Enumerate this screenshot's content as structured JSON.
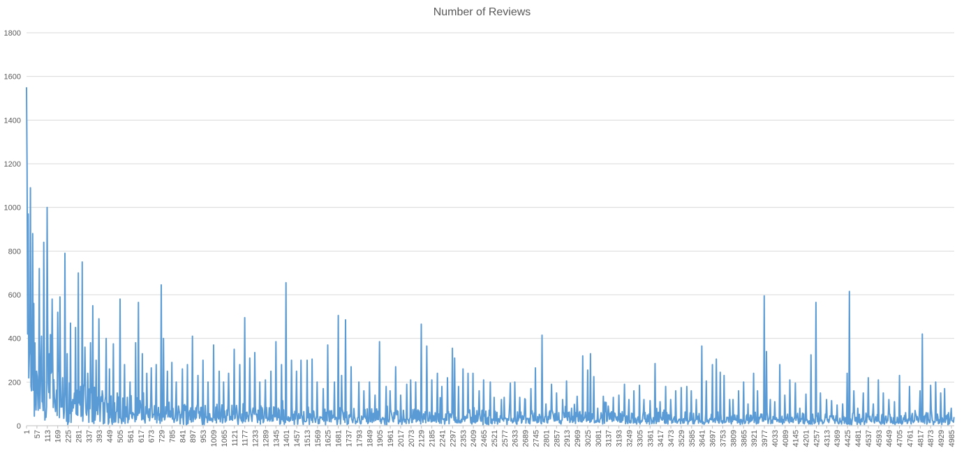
{
  "chart_data": {
    "type": "line",
    "title": "Number of Reviews",
    "xlabel": "",
    "ylabel": "",
    "x_range": [
      1,
      5000
    ],
    "ylim": [
      0,
      1800
    ],
    "yticks": [
      0,
      200,
      400,
      600,
      800,
      1000,
      1200,
      1400,
      1600,
      1800
    ],
    "xtick_labels": [
      "1",
      "57",
      "113",
      "169",
      "225",
      "281",
      "337",
      "393",
      "449",
      "505",
      "561",
      "617",
      "673",
      "729",
      "785",
      "841",
      "897",
      "953",
      "1009",
      "1065",
      "1121",
      "1177",
      "1233",
      "1289",
      "1345",
      "1401",
      "1457",
      "1513",
      "1569",
      "1625",
      "1681",
      "1737",
      "1793",
      "1849",
      "1905",
      "1961",
      "2017",
      "2073",
      "2129",
      "2185",
      "2241",
      "2297",
      "2353",
      "2409",
      "2465",
      "2521",
      "2577",
      "2633",
      "2689",
      "2745",
      "2801",
      "2857",
      "2913",
      "2969",
      "3025",
      "3081",
      "3137",
      "3193",
      "3249",
      "3305",
      "3361",
      "3417",
      "3473",
      "3529",
      "3585",
      "3641",
      "3697",
      "3753",
      "3809",
      "3865",
      "3921",
      "3977",
      "4033",
      "4089",
      "4145",
      "4201",
      "4257",
      "4313",
      "4369",
      "4425",
      "4481",
      "4537",
      "4593",
      "4649",
      "4705",
      "4761",
      "4817",
      "4873",
      "4929",
      "4985"
    ],
    "grid": true,
    "legend": "none",
    "series_color": "#5b9bd5",
    "series": [
      {
        "peaks": [
          [
            1,
            380
          ],
          [
            3,
            1550
          ],
          [
            5,
            1170
          ],
          [
            8,
            420
          ],
          [
            12,
            970
          ],
          [
            17,
            320
          ],
          [
            22,
            1090
          ],
          [
            28,
            160
          ],
          [
            35,
            880
          ],
          [
            42,
            560
          ],
          [
            55,
            250
          ],
          [
            70,
            720
          ],
          [
            82,
            410
          ],
          [
            96,
            840
          ],
          [
            113,
            1000
          ],
          [
            125,
            330
          ],
          [
            140,
            580
          ],
          [
            155,
            100
          ],
          [
            170,
            520
          ],
          [
            182,
            590
          ],
          [
            196,
            220
          ],
          [
            208,
            790
          ],
          [
            222,
            330
          ],
          [
            238,
            470
          ],
          [
            252,
            120
          ],
          [
            266,
            450
          ],
          [
            281,
            700
          ],
          [
            293,
            180
          ],
          [
            303,
            750
          ],
          [
            318,
            360
          ],
          [
            333,
            240
          ],
          [
            347,
            380
          ],
          [
            360,
            550
          ],
          [
            378,
            300
          ],
          [
            393,
            490
          ],
          [
            410,
            160
          ],
          [
            430,
            400
          ],
          [
            449,
            260
          ],
          [
            470,
            375
          ],
          [
            490,
            150
          ],
          [
            505,
            580
          ],
          [
            530,
            280
          ],
          [
            561,
            200
          ],
          [
            590,
            380
          ],
          [
            605,
            565
          ],
          [
            625,
            330
          ],
          [
            650,
            240
          ],
          [
            673,
            265
          ],
          [
            700,
            280
          ],
          [
            729,
            645
          ],
          [
            740,
            400
          ],
          [
            760,
            250
          ],
          [
            785,
            290
          ],
          [
            810,
            200
          ],
          [
            841,
            260
          ],
          [
            870,
            280
          ],
          [
            897,
            410
          ],
          [
            925,
            230
          ],
          [
            953,
            300
          ],
          [
            980,
            200
          ],
          [
            1009,
            370
          ],
          [
            1040,
            250
          ],
          [
            1065,
            200
          ],
          [
            1090,
            240
          ],
          [
            1121,
            350
          ],
          [
            1150,
            280
          ],
          [
            1177,
            495
          ],
          [
            1205,
            310
          ],
          [
            1233,
            335
          ],
          [
            1260,
            200
          ],
          [
            1289,
            210
          ],
          [
            1320,
            250
          ],
          [
            1345,
            385
          ],
          [
            1375,
            280
          ],
          [
            1401,
            655
          ],
          [
            1430,
            300
          ],
          [
            1457,
            250
          ],
          [
            1480,
            300
          ],
          [
            1513,
            300
          ],
          [
            1540,
            305
          ],
          [
            1569,
            200
          ],
          [
            1600,
            170
          ],
          [
            1625,
            370
          ],
          [
            1660,
            200
          ],
          [
            1681,
            505
          ],
          [
            1700,
            230
          ],
          [
            1720,
            485
          ],
          [
            1750,
            270
          ],
          [
            1793,
            200
          ],
          [
            1820,
            160
          ],
          [
            1849,
            200
          ],
          [
            1880,
            140
          ],
          [
            1905,
            385
          ],
          [
            1940,
            180
          ],
          [
            1961,
            160
          ],
          [
            1990,
            270
          ],
          [
            2017,
            140
          ],
          [
            2050,
            190
          ],
          [
            2073,
            210
          ],
          [
            2100,
            200
          ],
          [
            2129,
            465
          ],
          [
            2160,
            365
          ],
          [
            2185,
            210
          ],
          [
            2215,
            240
          ],
          [
            2241,
            180
          ],
          [
            2270,
            220
          ],
          [
            2297,
            355
          ],
          [
            2310,
            310
          ],
          [
            2330,
            180
          ],
          [
            2353,
            260
          ],
          [
            2380,
            240
          ],
          [
            2409,
            240
          ],
          [
            2440,
            160
          ],
          [
            2465,
            210
          ],
          [
            2500,
            200
          ],
          [
            2521,
            130
          ],
          [
            2560,
            120
          ],
          [
            2577,
            130
          ],
          [
            2610,
            195
          ],
          [
            2633,
            200
          ],
          [
            2660,
            130
          ],
          [
            2689,
            120
          ],
          [
            2720,
            170
          ],
          [
            2745,
            265
          ],
          [
            2780,
            415
          ],
          [
            2801,
            100
          ],
          [
            2830,
            190
          ],
          [
            2857,
            150
          ],
          [
            2890,
            120
          ],
          [
            2913,
            205
          ],
          [
            2940,
            80
          ],
          [
            2969,
            135
          ],
          [
            3000,
            320
          ],
          [
            3025,
            255
          ],
          [
            3040,
            330
          ],
          [
            3060,
            225
          ],
          [
            3081,
            80
          ],
          [
            3110,
            135
          ],
          [
            3137,
            90
          ],
          [
            3165,
            130
          ],
          [
            3193,
            140
          ],
          [
            3225,
            190
          ],
          [
            3249,
            120
          ],
          [
            3275,
            160
          ],
          [
            3305,
            185
          ],
          [
            3330,
            120
          ],
          [
            3361,
            115
          ],
          [
            3390,
            285
          ],
          [
            3417,
            110
          ],
          [
            3445,
            180
          ],
          [
            3473,
            120
          ],
          [
            3500,
            160
          ],
          [
            3529,
            175
          ],
          [
            3560,
            180
          ],
          [
            3585,
            160
          ],
          [
            3610,
            120
          ],
          [
            3641,
            365
          ],
          [
            3665,
            205
          ],
          [
            3697,
            280
          ],
          [
            3720,
            305
          ],
          [
            3740,
            245
          ],
          [
            3760,
            230
          ],
          [
            3790,
            120
          ],
          [
            3809,
            120
          ],
          [
            3840,
            160
          ],
          [
            3865,
            200
          ],
          [
            3890,
            100
          ],
          [
            3921,
            240
          ],
          [
            3940,
            160
          ],
          [
            3977,
            595
          ],
          [
            3990,
            340
          ],
          [
            4010,
            120
          ],
          [
            4033,
            110
          ],
          [
            4060,
            280
          ],
          [
            4089,
            140
          ],
          [
            4115,
            210
          ],
          [
            4145,
            195
          ],
          [
            4170,
            80
          ],
          [
            4201,
            145
          ],
          [
            4230,
            325
          ],
          [
            4257,
            565
          ],
          [
            4280,
            150
          ],
          [
            4313,
            120
          ],
          [
            4340,
            115
          ],
          [
            4369,
            95
          ],
          [
            4400,
            100
          ],
          [
            4425,
            240
          ],
          [
            4435,
            615
          ],
          [
            4460,
            160
          ],
          [
            4481,
            80
          ],
          [
            4510,
            150
          ],
          [
            4537,
            220
          ],
          [
            4565,
            100
          ],
          [
            4593,
            210
          ],
          [
            4620,
            150
          ],
          [
            4649,
            120
          ],
          [
            4680,
            110
          ],
          [
            4705,
            230
          ],
          [
            4740,
            60
          ],
          [
            4761,
            180
          ],
          [
            4790,
            70
          ],
          [
            4817,
            160
          ],
          [
            4830,
            420
          ],
          [
            4850,
            60
          ],
          [
            4873,
            185
          ],
          [
            4900,
            200
          ],
          [
            4929,
            150
          ],
          [
            4950,
            170
          ],
          [
            4970,
            60
          ],
          [
            4985,
            80
          ],
          [
            5000,
            40
          ]
        ]
      }
    ]
  }
}
